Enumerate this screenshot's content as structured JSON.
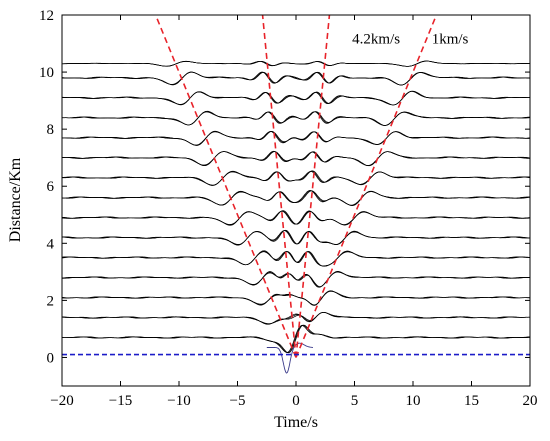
{
  "chart_data": {
    "type": "line",
    "xlabel": "Time/s",
    "ylabel": "Distance/Km",
    "xlim": [
      -20,
      20
    ],
    "ylim": [
      -1,
      12
    ],
    "xticks": [
      -20,
      -15,
      -10,
      -5,
      0,
      5,
      10,
      15,
      20
    ],
    "yticks": [
      0,
      2,
      4,
      6,
      8,
      10,
      12
    ],
    "grid": false,
    "trace_distances_km": [
      0.7,
      1.4,
      2.1,
      2.8,
      3.5,
      4.2,
      4.9,
      5.6,
      6.3,
      7.0,
      7.7,
      8.4,
      9.1,
      9.8,
      10.3
    ],
    "baseline": {
      "y": 0.1,
      "color": "#1c1cc8",
      "style": "dashed"
    },
    "velocity_lines": [
      {
        "label": "4.2km/s",
        "velocity_km_s": 4.2,
        "color": "#e8232a"
      },
      {
        "label": "1km/s",
        "velocity_km_s": 1.0,
        "color": "#e8232a"
      }
    ],
    "trace_color": "#000000",
    "frame_color": "#000000"
  }
}
